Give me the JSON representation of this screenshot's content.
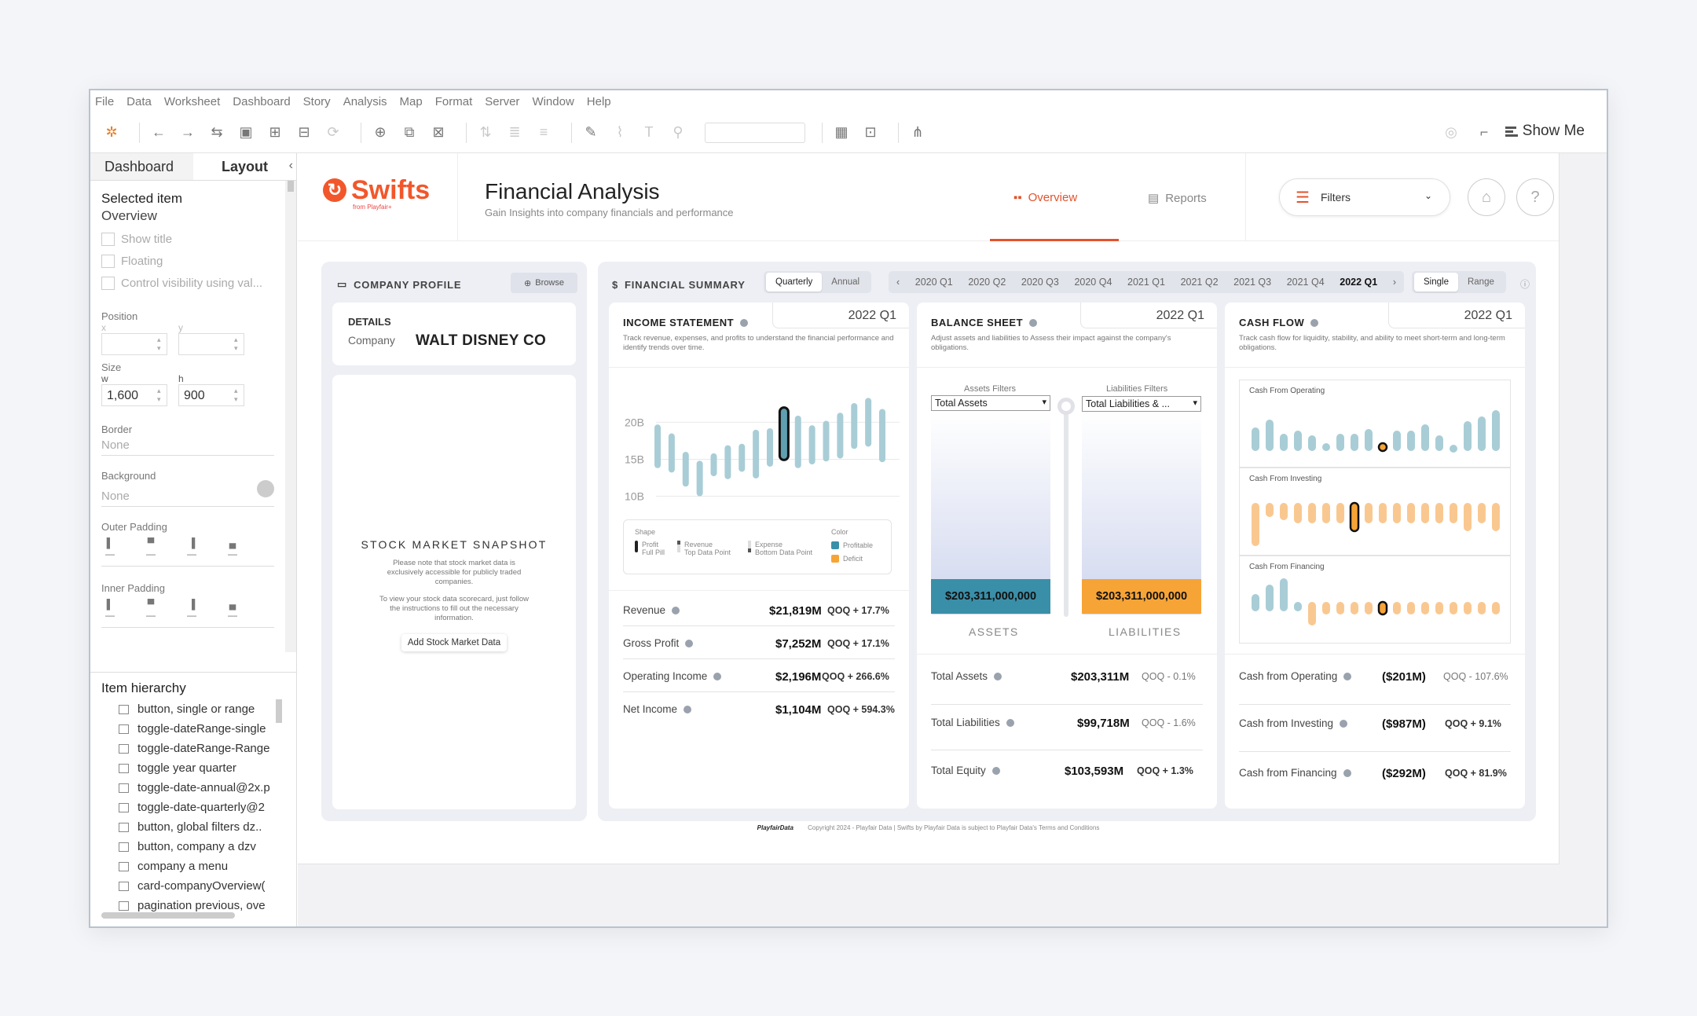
{
  "menu": [
    "File",
    "Data",
    "Worksheet",
    "Dashboard",
    "Story",
    "Analysis",
    "Map",
    "Format",
    "Server",
    "Window",
    "Help"
  ],
  "toolbar": {
    "show_me": "Show Me"
  },
  "left_panel": {
    "tabs": [
      "Dashboard",
      "Layout"
    ],
    "selected_item_label": "Selected item",
    "selected_item_value": "Overview",
    "checkboxes": [
      "Show title",
      "Floating",
      "Control visibility using val..."
    ],
    "position_label": "Position",
    "x_label": "x",
    "y_label": "y",
    "size_label": "Size",
    "w_label": "w",
    "h_label": "h",
    "w_value": "1,600",
    "h_value": "900",
    "border_label": "Border",
    "border_value": "None",
    "background_label": "Background",
    "background_value": "None",
    "outer_padding_label": "Outer Padding",
    "inner_padding_label": "Inner Padding",
    "hierarchy_title": "Item hierarchy",
    "hierarchy_items": [
      "button, single or range",
      "toggle-dateRange-single",
      "toggle-dateRange-Range",
      "toggle year quarter",
      "toggle-date-annual@2x.p",
      "toggle-date-quarterly@2",
      "button, global filters dz..",
      "button, company a dzv",
      "company a menu",
      "card-companyOverview(",
      "pagination previous, ove"
    ]
  },
  "header": {
    "logo_text": "Swifts",
    "logo_sub": "from Playfair+",
    "title": "Financial Analysis",
    "subtitle": "Gain Insights into company financials and performance",
    "tab_overview": "Overview",
    "tab_reports": "Reports",
    "filters_label": "Filters"
  },
  "company_profile": {
    "title": "COMPANY PROFILE",
    "browse": "Browse",
    "details_label": "DETAILS",
    "company_label": "Company",
    "company_value": "WALT DISNEY CO",
    "snapshot_title": "STOCK MARKET SNAPSHOT",
    "snapshot_p1": "Please note that stock market data is exclusively accessible for publicly traded companies.",
    "snapshot_p2": "To view your stock data scorecard, just follow the instructions to fill out the necessary information.",
    "snapshot_button": "Add Stock Market Data"
  },
  "financial_summary": {
    "title": "FINANCIAL SUMMARY",
    "period_toggle": [
      "Quarterly",
      "Annual"
    ],
    "quarters": [
      "2020 Q1",
      "2020 Q2",
      "2020 Q3",
      "2020 Q4",
      "2021 Q1",
      "2021 Q2",
      "2021 Q3",
      "2021 Q4",
      "2022 Q1"
    ],
    "selected_quarter": "2022 Q1",
    "mode_toggle": [
      "Single",
      "Range"
    ]
  },
  "income_statement": {
    "title": "INCOME STATEMENT",
    "quarter": "2022 Q1",
    "description": "Track revenue, expenses, and profits to understand the financial performance and identify trends over time.",
    "legend": {
      "shape_label": "Shape",
      "profit": "Profit",
      "profit_sub": "Full Pill",
      "revenue": "Revenue",
      "revenue_sub": "Top Data Point",
      "expense": "Expense",
      "expense_sub": "Bottom Data Point",
      "color_label": "Color",
      "profitable": "Profitable",
      "deficit": "Deficit"
    },
    "metrics": [
      {
        "label": "Revenue",
        "value": "$21,819M",
        "change": "QOQ + 17.7%"
      },
      {
        "label": "Gross Profit",
        "value": "$7,252M",
        "change": "QOQ + 17.1%"
      },
      {
        "label": "Operating Income",
        "value": "$2,196M",
        "change": "QOQ + 266.6%"
      },
      {
        "label": "Net Income",
        "value": "$1,104M",
        "change": "QOQ + 594.3%"
      }
    ]
  },
  "balance_sheet": {
    "title": "BALANCE SHEET",
    "quarter": "2022 Q1",
    "description": "Adjust assets and liabilities to Assess their impact against the company's obligations.",
    "assets_filter_label": "Assets Filters",
    "assets_filter_value": "Total Assets",
    "liabilities_filter_label": "Liabilities Filters",
    "liabilities_filter_value": "Total Liabilities & ...",
    "assets_value": "$203,311,000,000",
    "liabilities_value": "$203,311,000,000",
    "assets_caption": "ASSETS",
    "liabilities_caption": "LIABILITIES",
    "metrics": [
      {
        "label": "Total Assets",
        "value": "$203,311M",
        "change": "QOQ - 0.1%"
      },
      {
        "label": "Total Liabilities",
        "value": "$99,718M",
        "change": "QOQ - 1.6%"
      },
      {
        "label": "Total Equity",
        "value": "$103,593M",
        "change": "QOQ + 1.3%"
      }
    ]
  },
  "cash_flow": {
    "title": "CASH FLOW",
    "quarter": "2022 Q1",
    "description": "Track cash flow for liquidity, stability, and ability to meet short-term and long-term obligations.",
    "operating_label": "Cash From Operating",
    "investing_label": "Cash From Investing",
    "financing_label": "Cash From Financing",
    "metrics": [
      {
        "label": "Cash from Operating",
        "value": "($201M)",
        "change": "QOQ - 107.6%"
      },
      {
        "label": "Cash from Investing",
        "value": "($987M)",
        "change": "QOQ + 9.1%"
      },
      {
        "label": "Cash from Financing",
        "value": "($292M)",
        "change": "QOQ + 81.9%"
      }
    ]
  },
  "footer": {
    "brand": "PlayfairData",
    "copyright": "Copyright 2024 - Playfair Data | Swifts by Playfair Data is subject to Playfair Data's Terms and Conditions"
  },
  "chart_data": {
    "type": "bar",
    "title": "",
    "ylabel": "",
    "ytick_labels": [
      "20B",
      "15B",
      "10B"
    ],
    "series": [
      {
        "name": "Revenue",
        "values": [
          19.7,
          18.5,
          16.0,
          14.8,
          15.8,
          16.9,
          17.1,
          19.0,
          19.2,
          22.0,
          20.9,
          19.6,
          20.2,
          21.3,
          22.6,
          23.3,
          21.8
        ]
      },
      {
        "name": "Expense",
        "values": [
          13.8,
          13.2,
          11.3,
          10.0,
          12.7,
          12.3,
          13.3,
          12.4,
          14.0,
          14.9,
          13.8,
          14.3,
          14.7,
          15.1,
          16.4,
          16.7,
          14.6
        ]
      }
    ],
    "highlight_index": 9,
    "colors": {
      "bar": "#a9cdd6",
      "highlight": "#5f9fb0",
      "outline": "#111111",
      "grid": "#e9e9e9"
    }
  },
  "palette": {
    "accent": "#e2532c",
    "teal": "#3a8fa8",
    "orange": "#f7a437",
    "teal_light": "#a9cdd6",
    "orange_light": "#f9c891"
  }
}
